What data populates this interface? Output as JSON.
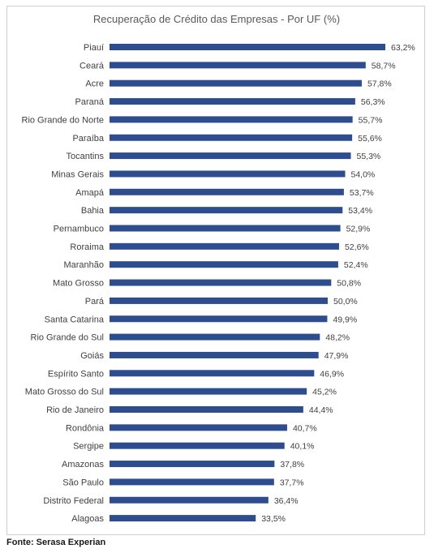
{
  "chart_data": {
    "type": "bar",
    "orientation": "horizontal",
    "title": "Recuperação de Crédito das Empresas - Por UF (%)",
    "categories": [
      "Piauí",
      "Ceará",
      "Acre",
      "Paraná",
      "Rio Grande do Norte",
      "Paraíba",
      "Tocantins",
      "Minas Gerais",
      "Amapá",
      "Bahia",
      "Pernambuco",
      "Roraima",
      "Maranhão",
      "Mato Grosso",
      "Pará",
      "Santa Catarina",
      "Rio Grande do Sul",
      "Goiás",
      "Espírito Santo",
      "Mato Grosso do Sul",
      "Rio de Janeiro",
      "Rondônia",
      "Sergipe",
      "Amazonas",
      "São Paulo",
      "Distrito Federal",
      "Alagoas"
    ],
    "values": [
      63.2,
      58.7,
      57.8,
      56.3,
      55.7,
      55.6,
      55.3,
      54.0,
      53.7,
      53.4,
      52.9,
      52.6,
      52.4,
      50.8,
      50.0,
      49.9,
      48.2,
      47.9,
      46.9,
      45.2,
      44.4,
      40.7,
      40.1,
      37.8,
      37.7,
      36.4,
      33.5
    ],
    "value_labels": [
      "63,2%",
      "58,7%",
      "57,8%",
      "56,3%",
      "55,7%",
      "55,6%",
      "55,3%",
      "54,0%",
      "53,7%",
      "53,4%",
      "52,9%",
      "52,6%",
      "52,4%",
      "50,8%",
      "50,0%",
      "49,9%",
      "48,2%",
      "47,9%",
      "46,9%",
      "45,2%",
      "44,4%",
      "40,7%",
      "40,1%",
      "37,8%",
      "37,7%",
      "36,4%",
      "33,5%"
    ],
    "xlim": [
      0,
      63.2
    ],
    "grid": false,
    "legend": "none",
    "bar_color": "#2e4d8f"
  },
  "footer": {
    "source": "Fonte: Serasa Experian"
  }
}
